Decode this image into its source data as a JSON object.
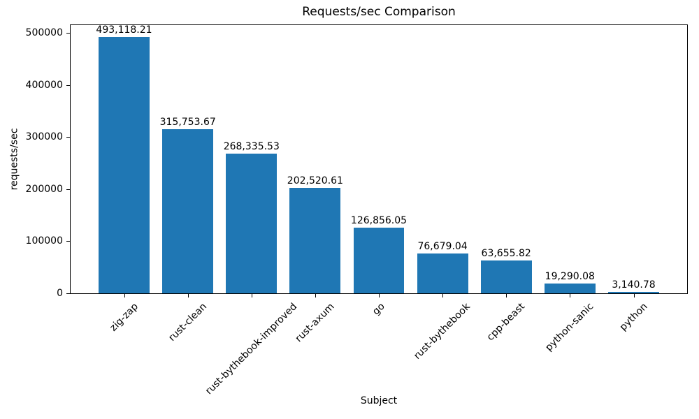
{
  "chart_data": {
    "type": "bar",
    "title": "Requests/sec Comparison",
    "xlabel": "Subject",
    "ylabel": "requests/sec",
    "categories": [
      "zig-zap",
      "rust-clean",
      "rust-bythebook-improved",
      "rust-axum",
      "go",
      "rust-bythebook",
      "cpp-beast",
      "python-sanic",
      "python"
    ],
    "values": [
      493118.21,
      315753.67,
      268335.53,
      202520.61,
      126856.05,
      76679.04,
      63655.82,
      19290.08,
      3140.78
    ],
    "value_labels": [
      "493,118.21",
      "315,753.67",
      "268,335.53",
      "202,520.61",
      "126,856.05",
      "76,679.04",
      "63,655.82",
      "19,290.08",
      "3,140.78"
    ],
    "yticks": [
      0,
      100000,
      200000,
      300000,
      400000,
      500000
    ],
    "ytick_labels": [
      "0",
      "100000",
      "200000",
      "300000",
      "400000",
      "500000"
    ],
    "ylim": [
      0,
      516000
    ],
    "bar_color": "#1f77b4",
    "grid": false,
    "legend_position": "none"
  }
}
